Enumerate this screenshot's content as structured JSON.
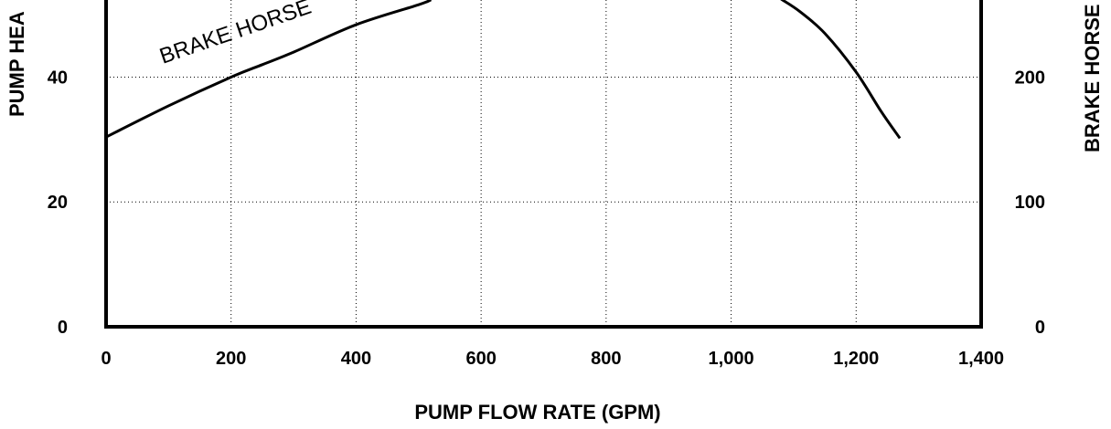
{
  "chart_data": {
    "type": "line",
    "xlabel": "PUMP FLOW RATE (GPM)",
    "ylabel_left": "PUMP HEA",
    "ylabel_right": "BRAKE HORSE",
    "x_ticks": [
      "0",
      "200",
      "400",
      "600",
      "800",
      "1,000",
      "1,200",
      "1,400"
    ],
    "x_tick_values": [
      0,
      200,
      400,
      600,
      800,
      1000,
      1200,
      1400
    ],
    "y_left_ticks": [
      "0",
      "20",
      "40"
    ],
    "y_left_tick_values": [
      0,
      20,
      40
    ],
    "y_right_ticks": [
      "0",
      "100",
      "200"
    ],
    "y_right_tick_values": [
      0,
      100,
      200
    ],
    "xlim": [
      0,
      1400
    ],
    "ylim_left": [
      0,
      52.5
    ],
    "ylim_right": [
      0,
      262.5
    ],
    "grid": true,
    "grid_style": "dotted",
    "series": [
      {
        "name": "BRAKE HORSE",
        "label_text": "BRAKE HORSE",
        "axis": "right",
        "x": [
          0,
          100,
          200,
          250,
          300,
          400,
          500,
          520
        ],
        "y": [
          152,
          177,
          200,
          210,
          220,
          242,
          258,
          262
        ]
      },
      {
        "axis": "left",
        "x": [
          1080,
          1110,
          1150,
          1200,
          1240,
          1270
        ],
        "y": [
          52.5,
          50.5,
          47,
          40.8,
          34.5,
          30.2
        ]
      }
    ]
  }
}
